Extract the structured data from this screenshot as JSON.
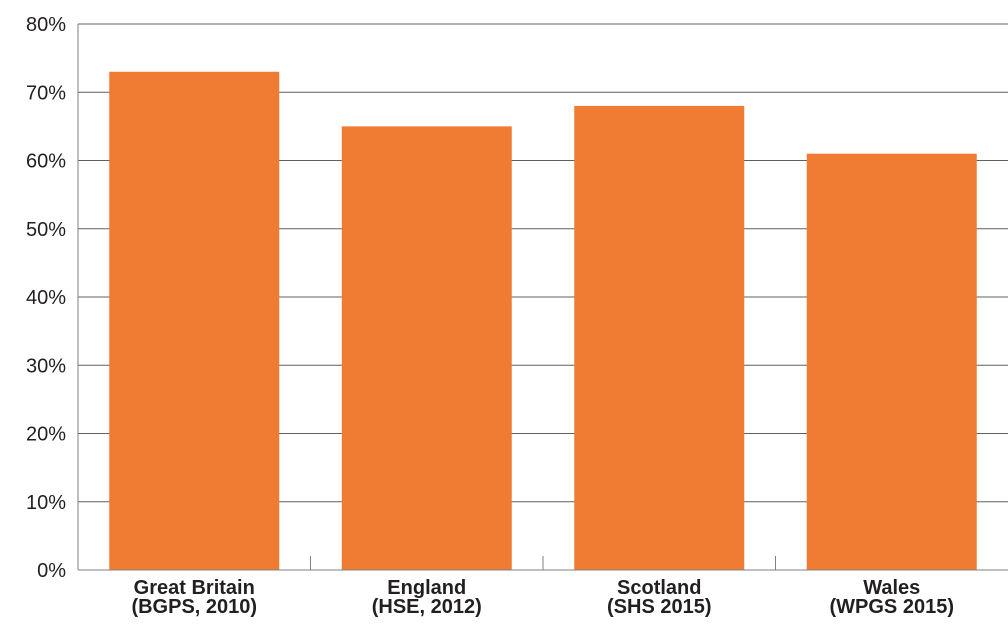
{
  "chart_data": {
    "type": "bar",
    "title": "",
    "xlabel": "",
    "ylabel": "",
    "categories": [
      [
        "Great Britain",
        "(BGPS, 2010)"
      ],
      [
        "England",
        "(HSE, 2012)"
      ],
      [
        "Scotland",
        "(SHS 2015)"
      ],
      [
        "Wales",
        "(WPGS 2015)"
      ]
    ],
    "values": [
      73,
      65,
      68,
      61
    ],
    "value_unit": "%",
    "ylim": [
      0,
      80
    ],
    "yticks": [
      0,
      10,
      20,
      30,
      40,
      50,
      60,
      70,
      80
    ],
    "ytick_labels": [
      "0%",
      "10%",
      "20%",
      "30%",
      "40%",
      "50%",
      "60%",
      "70%",
      "80%"
    ],
    "grid": true,
    "legend": "none",
    "colors": {
      "bar": "#f07b33",
      "grid": "#606060",
      "axis": "#808080",
      "text": "#231f20"
    }
  }
}
